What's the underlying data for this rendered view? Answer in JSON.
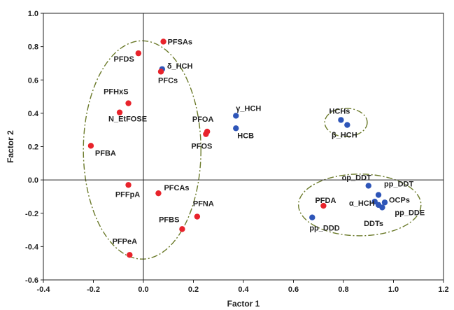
{
  "chart_data": {
    "type": "scatter",
    "xlabel": "Factor 1",
    "ylabel": "Factor 2",
    "xlim": [
      -0.4,
      1.2
    ],
    "ylim": [
      -0.6,
      1.0
    ],
    "x_ticks": [
      -0.4,
      -0.2,
      0.0,
      0.2,
      0.4,
      0.6,
      0.8,
      1.0,
      1.2
    ],
    "y_ticks": [
      -0.6,
      -0.4,
      -0.2,
      0.0,
      0.2,
      0.4,
      0.6,
      0.8,
      1.0
    ],
    "x_tick_labels": [
      "-0.4",
      "-0.2",
      "0.0",
      "0.2",
      "0.4",
      "0.6",
      "0.8",
      "1.0",
      "1.2"
    ],
    "y_tick_labels": [
      "-0.6",
      "-0.4",
      "-0.2",
      "0.0",
      "0.2",
      "0.4",
      "0.6",
      "0.8",
      "1.0"
    ],
    "grid": false,
    "zero_lines": true,
    "colors": {
      "pfc": "#e8232b",
      "ocp": "#2e55b8",
      "ellipse": "#6b7a2a"
    },
    "points": [
      {
        "label": "PFSAs",
        "x": 0.08,
        "y": 0.83,
        "color": "pfc",
        "anchor": "start",
        "dx": 6,
        "dy": 4
      },
      {
        "label": "PFDS",
        "x": -0.02,
        "y": 0.76,
        "color": "pfc",
        "anchor": "end",
        "dx": -6,
        "dy": 12
      },
      {
        "label": "δ_HCH",
        "x": 0.075,
        "y": 0.665,
        "color": "ocp",
        "anchor": "start",
        "dx": 7,
        "dy": -1
      },
      {
        "label": "PFCs",
        "x": 0.07,
        "y": 0.65,
        "color": "pfc",
        "anchor": "start",
        "dx": -4,
        "dy": 16
      },
      {
        "label": "PFHxS",
        "x": -0.06,
        "y": 0.46,
        "color": "pfc",
        "anchor": "end",
        "dx": 0,
        "dy": -13
      },
      {
        "label": "N_EtFOSE",
        "x": -0.095,
        "y": 0.405,
        "color": "pfc",
        "anchor": "start",
        "dx": -16,
        "dy": 13
      },
      {
        "label": "PFBA",
        "x": -0.21,
        "y": 0.205,
        "color": "pfc",
        "anchor": "start",
        "dx": 6,
        "dy": 14
      },
      {
        "label": "PFOA",
        "x": 0.255,
        "y": 0.29,
        "color": "pfc",
        "anchor": "middle",
        "dx": -6,
        "dy": -14
      },
      {
        "label": "PFOS",
        "x": 0.25,
        "y": 0.275,
        "color": "pfc",
        "anchor": "middle",
        "dx": -6,
        "dy": 21
      },
      {
        "label": "γ_HCH",
        "x": 0.37,
        "y": 0.385,
        "color": "ocp",
        "anchor": "start",
        "dx": 0,
        "dy": -7
      },
      {
        "label": "HCB",
        "x": 0.37,
        "y": 0.31,
        "color": "ocp",
        "anchor": "start",
        "dx": 2,
        "dy": 14
      },
      {
        "label": "HCHs",
        "x": 0.79,
        "y": 0.36,
        "color": "ocp",
        "anchor": "middle",
        "dx": -2,
        "dy": -9
      },
      {
        "label": "β_HCH",
        "x": 0.815,
        "y": 0.33,
        "color": "ocp",
        "anchor": "middle",
        "dx": -4,
        "dy": 18
      },
      {
        "label": "PFFpA",
        "x": -0.06,
        "y": -0.03,
        "color": "pfc",
        "anchor": "middle",
        "dx": -1,
        "dy": 17
      },
      {
        "label": "PFCAs",
        "x": 0.06,
        "y": -0.08,
        "color": "pfc",
        "anchor": "start",
        "dx": 8,
        "dy": -4
      },
      {
        "label": "PFNA",
        "x": 0.215,
        "y": -0.22,
        "color": "pfc",
        "anchor": "start",
        "dx": -6,
        "dy": -15
      },
      {
        "label": "PFBS",
        "x": 0.155,
        "y": -0.295,
        "color": "pfc",
        "anchor": "end",
        "dx": -4,
        "dy": -10
      },
      {
        "label": "PFPeA",
        "x": -0.055,
        "y": -0.45,
        "color": "pfc",
        "anchor": "middle",
        "dx": -7,
        "dy": -16
      },
      {
        "label": "op_DDT",
        "x": 0.9,
        "y": -0.035,
        "color": "ocp",
        "anchor": "end",
        "dx": 4,
        "dy": -8
      },
      {
        "label": "pp_DDT",
        "x": 0.94,
        "y": -0.09,
        "color": "ocp",
        "anchor": "start",
        "dx": 8,
        "dy": -12
      },
      {
        "label": "PFDA",
        "x": 0.72,
        "y": -0.155,
        "color": "pfc",
        "anchor": "end",
        "dx": 18,
        "dy": -4
      },
      {
        "label": "α_HCH",
        "x": 0.925,
        "y": -0.13,
        "color": "ocp",
        "anchor": "end",
        "dx": 0,
        "dy": 6
      },
      {
        "label": "OCPs",
        "x": 0.965,
        "y": -0.135,
        "color": "ocp",
        "anchor": "start",
        "dx": 6,
        "dy": 0
      },
      {
        "label": "pp_DDE",
        "x": 0.955,
        "y": -0.165,
        "color": "ocp",
        "anchor": "start",
        "dx": 18,
        "dy": 11
      },
      {
        "label": "DDTs",
        "x": 0.94,
        "y": -0.15,
        "color": "ocp",
        "anchor": "middle",
        "dx": -7,
        "dy": 30
      },
      {
        "label": "pp_DDD",
        "x": 0.675,
        "y": -0.225,
        "color": "ocp",
        "anchor": "start",
        "dx": -4,
        "dy": 19
      }
    ],
    "groups": [
      {
        "cx": -0.005,
        "cy": 0.18,
        "rx": 0.235,
        "ry": 0.655
      },
      {
        "cx": 0.81,
        "cy": 0.345,
        "rx": 0.085,
        "ry": 0.085
      },
      {
        "cx": 0.865,
        "cy": -0.15,
        "rx": 0.245,
        "ry": 0.185
      }
    ]
  }
}
